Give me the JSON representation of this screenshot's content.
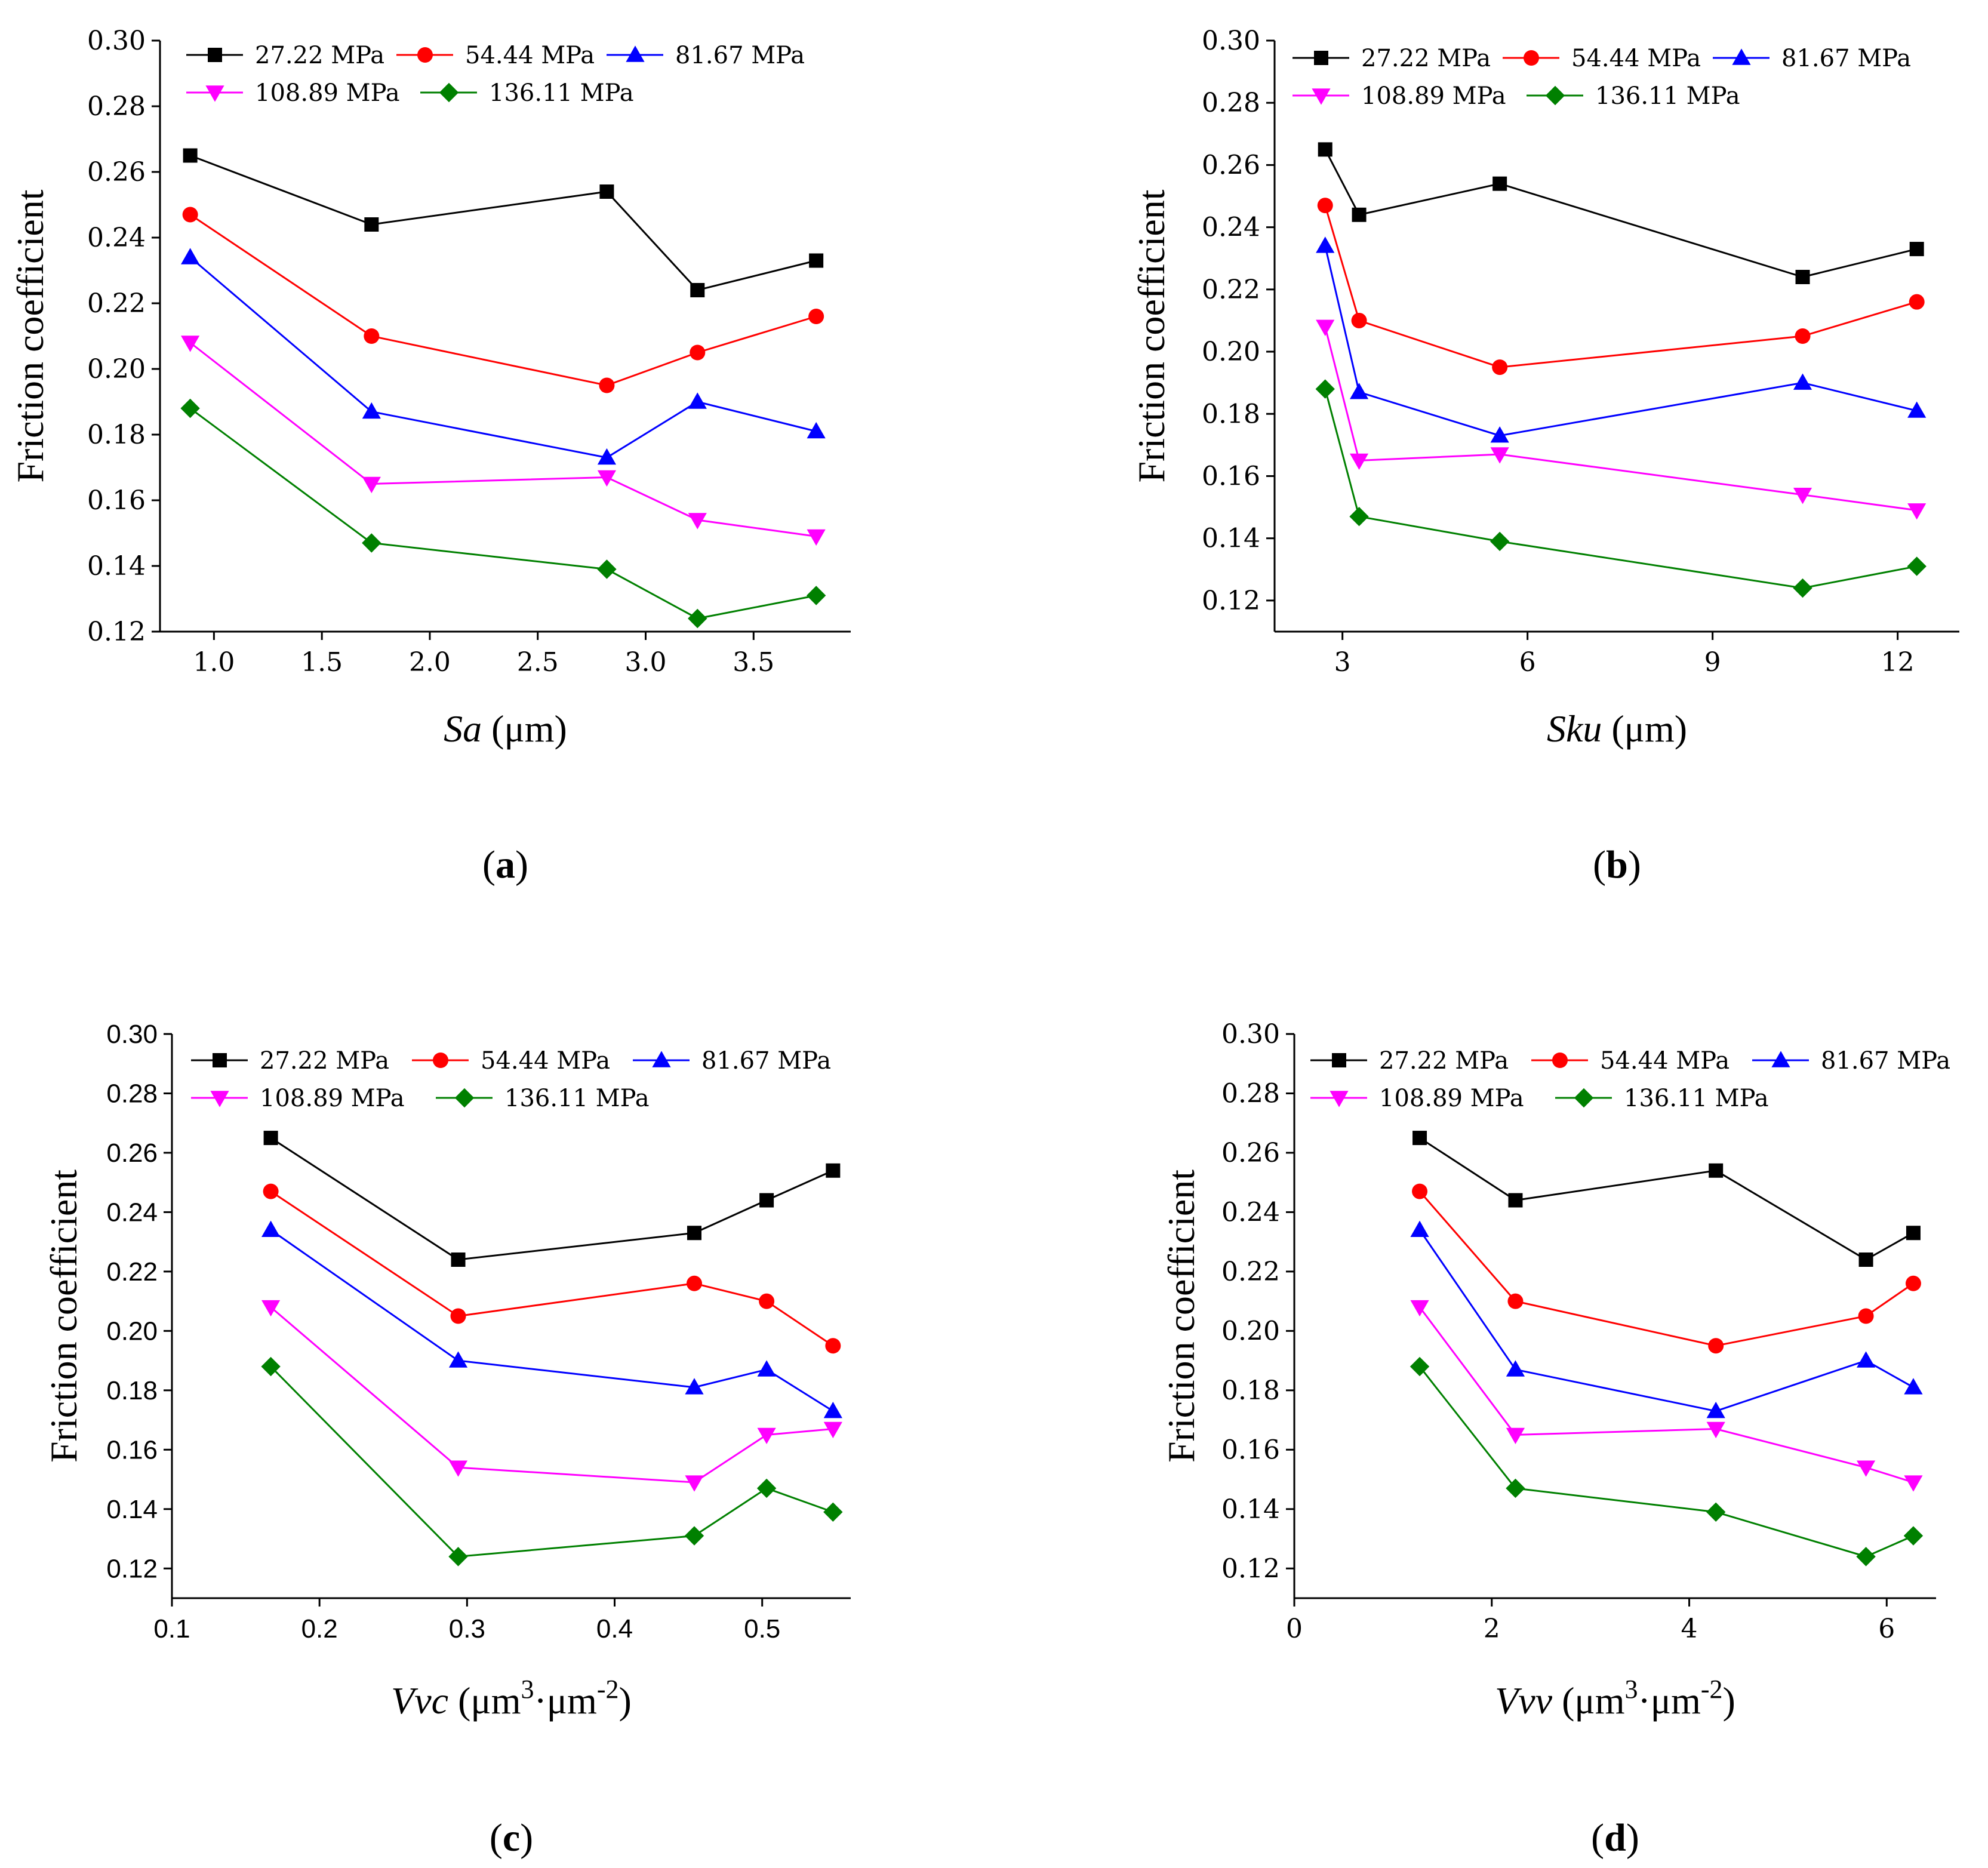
{
  "chart_data": [
    {
      "id": "a",
      "type": "line",
      "panel_label": "a",
      "xlabel_italic": "Sa",
      "xlabel_rest": " (μm)",
      "xlabel_sup": "",
      "xlabel_rest2": "",
      "xlabel_sup2": "",
      "xlabel_end": "",
      "ylabel": "Friction coefficient",
      "xlim": [
        0.75,
        3.95
      ],
      "ylim": [
        0.12,
        0.3
      ],
      "xticks": [
        1.0,
        1.5,
        2.0,
        2.5,
        3.0,
        3.5
      ],
      "xtick_labels": [
        "1.0",
        "1.5",
        "2.0",
        "2.5",
        "3.0",
        "3.5"
      ],
      "yticks": [
        0.12,
        0.14,
        0.16,
        0.18,
        0.2,
        0.22,
        0.24,
        0.26,
        0.28,
        0.3
      ],
      "ytick_labels": [
        "0.12",
        "0.14",
        "0.16",
        "0.18",
        "0.20",
        "0.22",
        "0.24",
        "0.26",
        "0.28",
        "0.30"
      ],
      "x": [
        0.89,
        1.73,
        2.82,
        3.24,
        3.79
      ],
      "series": [
        {
          "name": "27.22 MPa",
          "values": [
            0.265,
            0.244,
            0.254,
            0.224,
            0.233
          ]
        },
        {
          "name": "54.44 MPa",
          "values": [
            0.247,
            0.21,
            0.195,
            0.205,
            0.216
          ]
        },
        {
          "name": "81.67 MPa",
          "values": [
            0.234,
            0.187,
            0.173,
            0.19,
            0.181
          ]
        },
        {
          "name": "108.89 MPa",
          "values": [
            0.208,
            0.165,
            0.167,
            0.154,
            0.149
          ]
        },
        {
          "name": "136.11 MPa",
          "values": [
            0.188,
            0.147,
            0.139,
            0.124,
            0.131
          ]
        }
      ]
    },
    {
      "id": "b",
      "type": "line",
      "panel_label": "b",
      "xlabel_italic": "Sku",
      "xlabel_rest": " (μm)",
      "xlabel_sup": "",
      "xlabel_rest2": "",
      "xlabel_sup2": "",
      "xlabel_end": "",
      "ylabel": "Friction coefficient",
      "xlim": [
        1.9,
        13.0
      ],
      "ylim": [
        0.11,
        0.3
      ],
      "xticks": [
        3,
        6,
        9,
        12
      ],
      "xtick_labels": [
        "3",
        "6",
        "9",
        "12"
      ],
      "yticks": [
        0.12,
        0.14,
        0.16,
        0.18,
        0.2,
        0.22,
        0.24,
        0.26,
        0.28,
        0.3
      ],
      "ytick_labels": [
        "0.12",
        "0.14",
        "0.16",
        "0.18",
        "0.20",
        "0.22",
        "0.24",
        "0.26",
        "0.28",
        "0.30"
      ],
      "x": [
        2.72,
        3.27,
        5.55,
        10.46,
        12.31
      ],
      "series": [
        {
          "name": "27.22 MPa",
          "values": [
            0.265,
            0.244,
            0.254,
            0.224,
            0.233
          ]
        },
        {
          "name": "54.44 MPa",
          "values": [
            0.247,
            0.21,
            0.195,
            0.205,
            0.216
          ]
        },
        {
          "name": "81.67 MPa",
          "values": [
            0.234,
            0.187,
            0.173,
            0.19,
            0.181
          ]
        },
        {
          "name": "108.89 MPa",
          "values": [
            0.208,
            0.165,
            0.167,
            0.154,
            0.149
          ]
        },
        {
          "name": "136.11 MPa",
          "values": [
            0.188,
            0.147,
            0.139,
            0.124,
            0.131
          ]
        }
      ]
    },
    {
      "id": "c",
      "type": "line",
      "panel_label": "c",
      "xlabel_italic": "Vvc",
      "xlabel_rest": " (μm",
      "xlabel_sup": "3",
      "xlabel_rest2": "·μm",
      "xlabel_sup2": "-2",
      "xlabel_end": ")",
      "ylabel": "Friction coefficient",
      "xlim": [
        0.1,
        0.56
      ],
      "ylim": [
        0.11,
        0.3
      ],
      "xticks": [
        0.1,
        0.2,
        0.3,
        0.4,
        0.5
      ],
      "xtick_labels": [
        "0.1",
        "0.2",
        "0.3",
        "0.4",
        "0.5"
      ],
      "yticks": [
        0.12,
        0.14,
        0.16,
        0.18,
        0.2,
        0.22,
        0.24,
        0.26,
        0.28,
        0.3
      ],
      "ytick_labels": [
        "0.12",
        "0.14",
        "0.16",
        "0.18",
        "0.20",
        "0.22",
        "0.24",
        "0.26",
        "0.28",
        "0.30"
      ],
      "x": [
        0.167,
        0.294,
        0.454,
        0.503,
        0.548
      ],
      "series": [
        {
          "name": "27.22 MPa",
          "values": [
            0.265,
            0.224,
            0.233,
            0.244,
            0.254
          ]
        },
        {
          "name": "54.44 MPa",
          "values": [
            0.247,
            0.205,
            0.216,
            0.21,
            0.195
          ]
        },
        {
          "name": "81.67 MPa",
          "values": [
            0.234,
            0.19,
            0.181,
            0.187,
            0.173
          ]
        },
        {
          "name": "108.89 MPa",
          "values": [
            0.208,
            0.154,
            0.149,
            0.165,
            0.167
          ]
        },
        {
          "name": "136.11 MPa",
          "values": [
            0.188,
            0.124,
            0.131,
            0.147,
            0.139
          ]
        }
      ]
    },
    {
      "id": "d",
      "type": "line",
      "panel_label": "d",
      "xlabel_italic": "Vvv",
      "xlabel_rest": " (μm",
      "xlabel_sup": "3",
      "xlabel_rest2": "·μm",
      "xlabel_sup2": "-2",
      "xlabel_end": ")",
      "ylabel": "Friction coefficient",
      "xlim": [
        0,
        6.5
      ],
      "ylim": [
        0.11,
        0.3
      ],
      "xticks": [
        0,
        2,
        4,
        6
      ],
      "xtick_labels": [
        "0",
        "2",
        "4",
        "6"
      ],
      "yticks": [
        0.12,
        0.14,
        0.16,
        0.18,
        0.2,
        0.22,
        0.24,
        0.26,
        0.28,
        0.3
      ],
      "ytick_labels": [
        "0.12",
        "0.14",
        "0.16",
        "0.18",
        "0.20",
        "0.22",
        "0.24",
        "0.26",
        "0.28",
        "0.30"
      ],
      "x": [
        1.27,
        2.24,
        4.27,
        5.79,
        6.27
      ],
      "series": [
        {
          "name": "27.22 MPa",
          "values": [
            0.265,
            0.244,
            0.254,
            0.224,
            0.233
          ]
        },
        {
          "name": "54.44 MPa",
          "values": [
            0.247,
            0.21,
            0.195,
            0.205,
            0.216
          ]
        },
        {
          "name": "81.67 MPa",
          "values": [
            0.234,
            0.187,
            0.173,
            0.19,
            0.181
          ]
        },
        {
          "name": "108.89 MPa",
          "values": [
            0.208,
            0.165,
            0.167,
            0.154,
            0.149
          ]
        },
        {
          "name": "136.11 MPa",
          "values": [
            0.188,
            0.147,
            0.139,
            0.124,
            0.131
          ]
        }
      ]
    }
  ],
  "series_style": [
    {
      "color": "#000000",
      "marker": "square"
    },
    {
      "color": "#ff0000",
      "marker": "circle"
    },
    {
      "color": "#0000ff",
      "marker": "triangle-up"
    },
    {
      "color": "#ff00ff",
      "marker": "triangle-down"
    },
    {
      "color": "#008000",
      "marker": "diamond"
    }
  ],
  "legend_placement": "top-left",
  "grid": false
}
